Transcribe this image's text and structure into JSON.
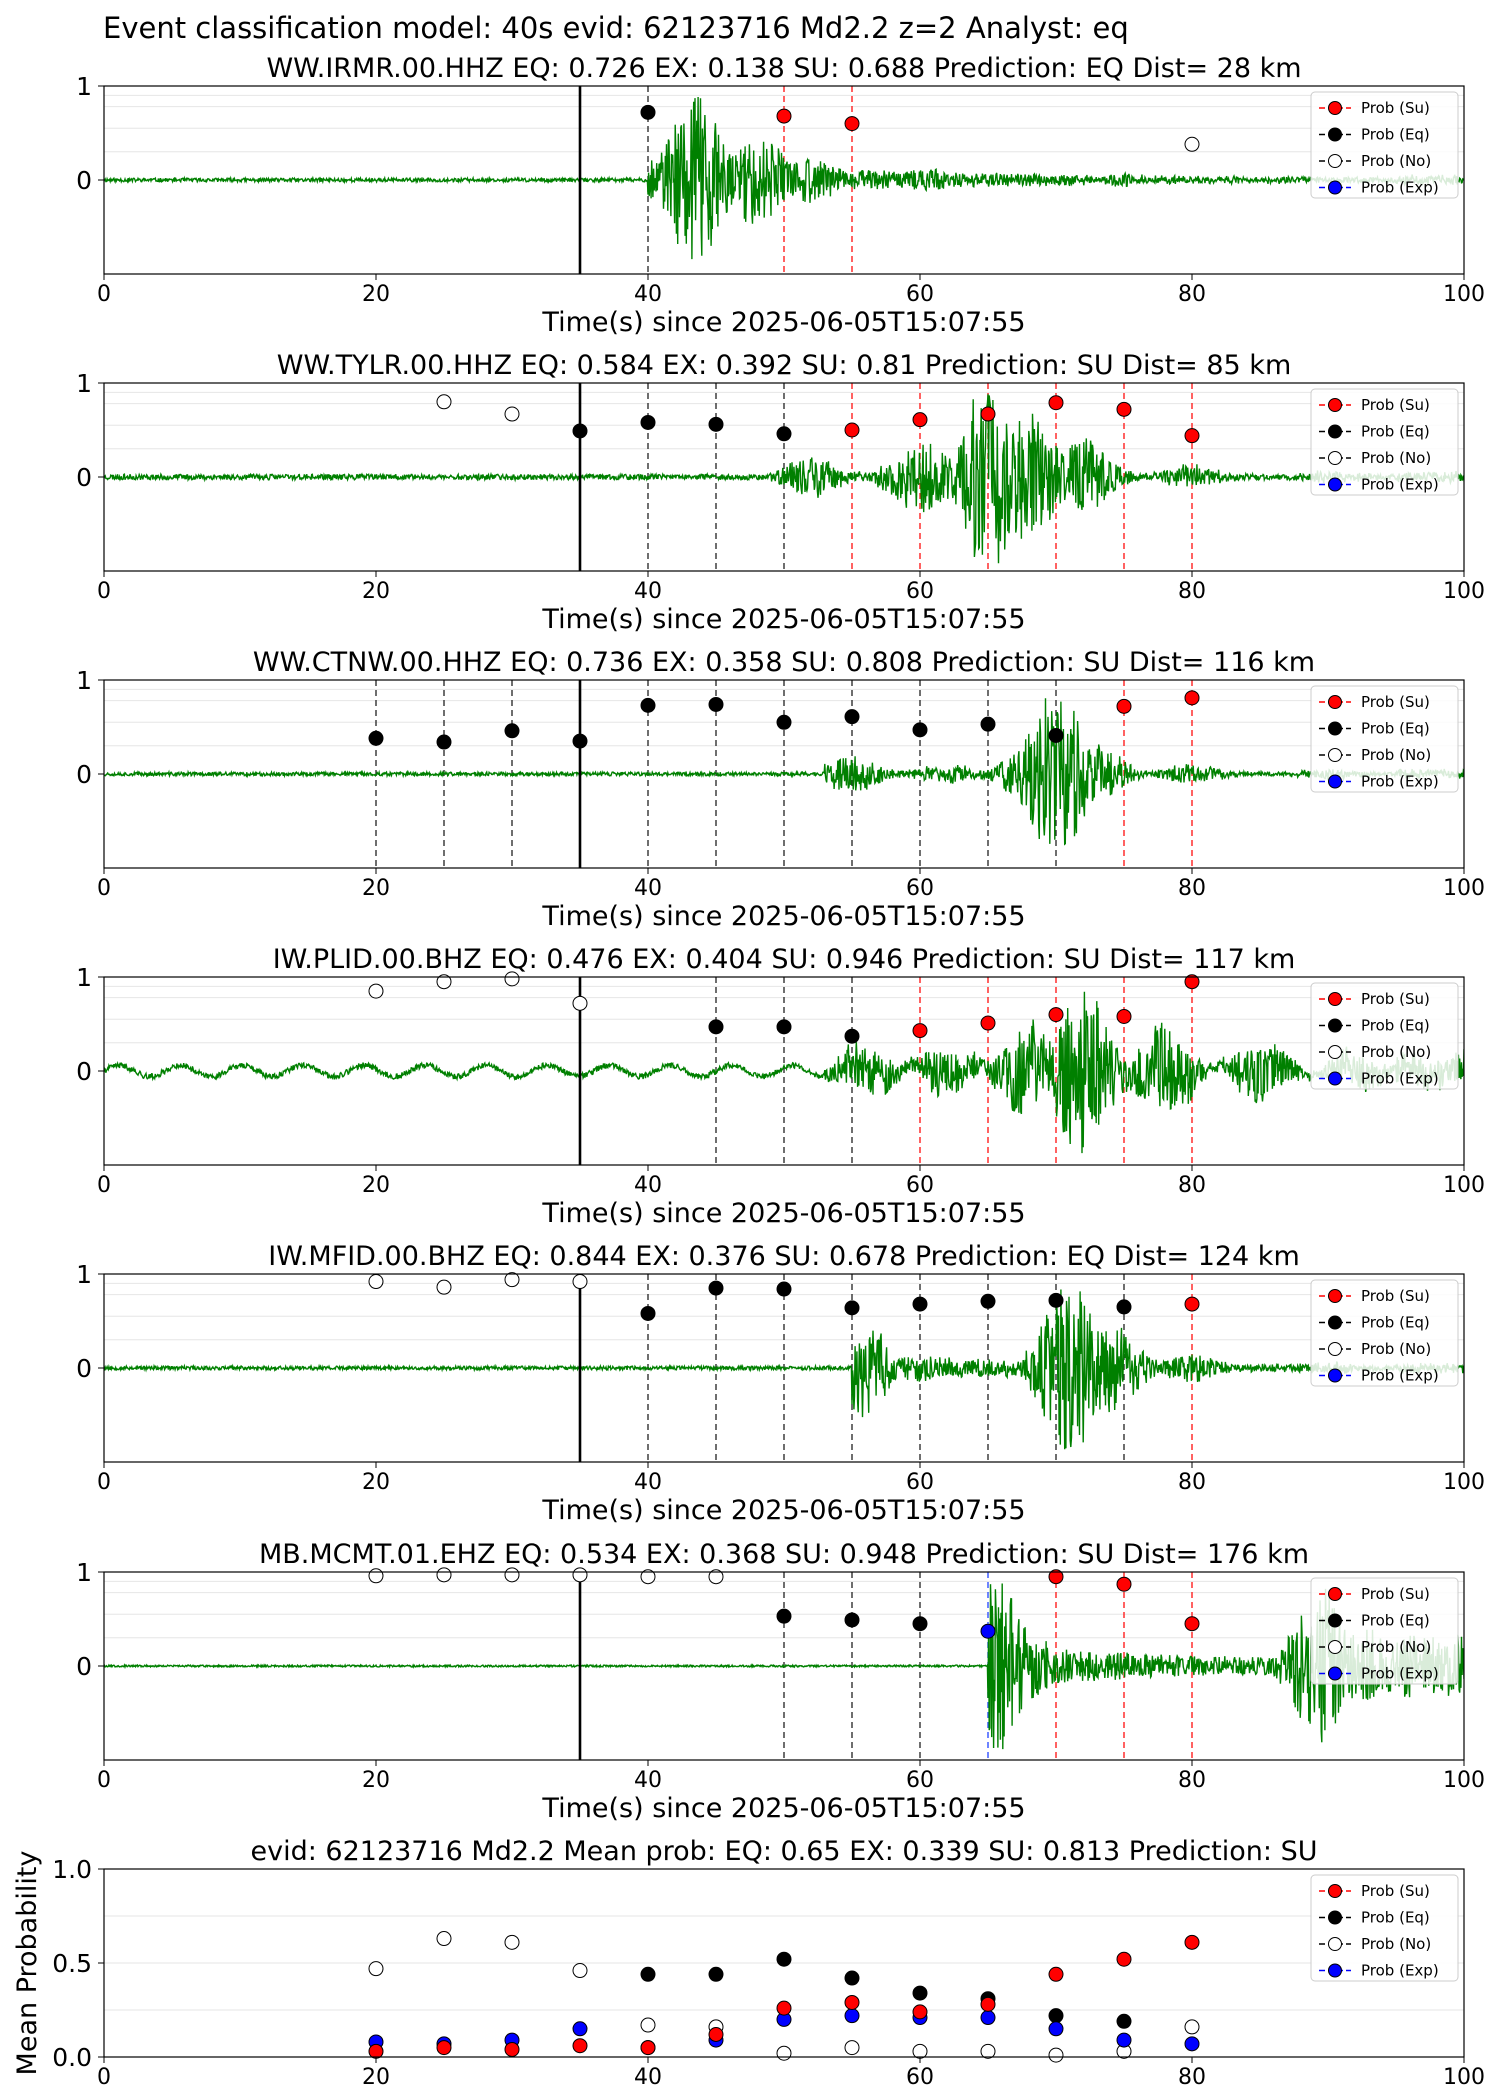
{
  "suptitle": "Event classification model: 40s evid: 62123716 Md2.2 z=2 Analyst: eq",
  "legend": {
    "su": "Prob (Su)",
    "eq": "Prob (Eq)",
    "no": "Prob (No)",
    "exp": "Prob (Exp)"
  },
  "colors": {
    "su": "#ff0000",
    "eq": "#000000",
    "no": "#ffffff",
    "exp": "#0000ff",
    "trace": "#008000"
  },
  "chart_data": [
    {
      "type": "scatter",
      "title": "WW.IRMR.00.HHZ   EQ: 0.726  EX: 0.138  SU: 0.688   Prediction: EQ    Dist= 28 km",
      "xlabel": "Time(s) since 2025-06-05T15:07:55",
      "xlim": [
        0,
        100
      ],
      "ylim": [
        -1,
        1
      ],
      "xticks": [
        "0",
        "20",
        "40",
        "60",
        "80",
        "100"
      ],
      "yticks": [
        "1",
        "0"
      ],
      "event_line": 35,
      "trace": {
        "onset": 40,
        "peaks": [
          [
            43.5,
            0.9
          ],
          [
            48,
            0.5
          ],
          [
            52,
            0.25
          ],
          [
            60,
            0.12
          ],
          [
            75,
            0.06
          ]
        ],
        "tail_level": 0.04,
        "tail_start": 95,
        "noise_level": 0.02,
        "wave_period": 0,
        "seed": 11
      },
      "points": [
        {
          "x": 40,
          "y": 0.72,
          "cls": "eq",
          "vline": true
        },
        {
          "x": 50,
          "y": 0.68,
          "cls": "su",
          "vline": true
        },
        {
          "x": 55,
          "y": 0.6,
          "cls": "su",
          "vline": true
        },
        {
          "x": 80,
          "y": 0.38,
          "cls": "no",
          "vline": false
        }
      ]
    },
    {
      "type": "scatter",
      "title": "WW.TYLR.00.HHZ   EQ: 0.584  EX: 0.392  SU: 0.81   Prediction: SU    Dist= 85 km",
      "xlabel": "Time(s) since 2025-06-05T15:07:55",
      "xlim": [
        0,
        100
      ],
      "ylim": [
        -1,
        1
      ],
      "xticks": [
        "0",
        "20",
        "40",
        "60",
        "80",
        "100"
      ],
      "yticks": [
        "1",
        "0"
      ],
      "event_line": 35,
      "trace": {
        "onset": 49,
        "peaks": [
          [
            52,
            0.22
          ],
          [
            60,
            0.4
          ],
          [
            65,
            1.0
          ],
          [
            68,
            0.7
          ],
          [
            72,
            0.4
          ],
          [
            80,
            0.12
          ],
          [
            90,
            0.06
          ]
        ],
        "tail_level": 0.04,
        "tail_start": 95,
        "noise_level": 0.03,
        "wave_period": 0,
        "seed": 23
      },
      "points": [
        {
          "x": 25,
          "y": 0.8,
          "cls": "no",
          "vline": false
        },
        {
          "x": 30,
          "y": 0.67,
          "cls": "no",
          "vline": false
        },
        {
          "x": 35,
          "y": 0.49,
          "cls": "eq",
          "vline": false
        },
        {
          "x": 40,
          "y": 0.58,
          "cls": "eq",
          "vline": true
        },
        {
          "x": 45,
          "y": 0.56,
          "cls": "eq",
          "vline": true
        },
        {
          "x": 50,
          "y": 0.46,
          "cls": "eq",
          "vline": true
        },
        {
          "x": 55,
          "y": 0.5,
          "cls": "su",
          "vline": true
        },
        {
          "x": 60,
          "y": 0.61,
          "cls": "su",
          "vline": true
        },
        {
          "x": 65,
          "y": 0.67,
          "cls": "su",
          "vline": true
        },
        {
          "x": 70,
          "y": 0.79,
          "cls": "su",
          "vline": true
        },
        {
          "x": 75,
          "y": 0.72,
          "cls": "su",
          "vline": true
        },
        {
          "x": 80,
          "y": 0.44,
          "cls": "su",
          "vline": true
        }
      ]
    },
    {
      "type": "scatter",
      "title": "WW.CTNW.00.HHZ   EQ: 0.736  EX: 0.358  SU: 0.808   Prediction: SU    Dist= 116 km",
      "xlabel": "Time(s) since 2025-06-05T15:07:55",
      "xlim": [
        0,
        100
      ],
      "ylim": [
        -1,
        1
      ],
      "xticks": [
        "0",
        "20",
        "40",
        "60",
        "80",
        "100"
      ],
      "yticks": [
        "1",
        "0"
      ],
      "event_line": 35,
      "trace": {
        "onset": 53,
        "peaks": [
          [
            55,
            0.2
          ],
          [
            62,
            0.1
          ],
          [
            68,
            0.3
          ],
          [
            70,
            0.9
          ],
          [
            73,
            0.3
          ],
          [
            80,
            0.1
          ],
          [
            90,
            0.05
          ]
        ],
        "tail_level": 0.04,
        "tail_start": 95,
        "noise_level": 0.02,
        "wave_period": 0,
        "seed": 37
      },
      "points": [
        {
          "x": 20,
          "y": 0.38,
          "cls": "eq",
          "vline": true
        },
        {
          "x": 25,
          "y": 0.34,
          "cls": "eq",
          "vline": true
        },
        {
          "x": 30,
          "y": 0.46,
          "cls": "eq",
          "vline": true
        },
        {
          "x": 35,
          "y": 0.35,
          "cls": "eq",
          "vline": false
        },
        {
          "x": 40,
          "y": 0.73,
          "cls": "eq",
          "vline": true
        },
        {
          "x": 45,
          "y": 0.74,
          "cls": "eq",
          "vline": true
        },
        {
          "x": 50,
          "y": 0.55,
          "cls": "eq",
          "vline": true
        },
        {
          "x": 55,
          "y": 0.61,
          "cls": "eq",
          "vline": true
        },
        {
          "x": 60,
          "y": 0.47,
          "cls": "eq",
          "vline": true
        },
        {
          "x": 65,
          "y": 0.53,
          "cls": "eq",
          "vline": true
        },
        {
          "x": 70,
          "y": 0.41,
          "cls": "eq",
          "vline": true
        },
        {
          "x": 75,
          "y": 0.72,
          "cls": "su",
          "vline": true
        },
        {
          "x": 80,
          "y": 0.81,
          "cls": "su",
          "vline": true
        }
      ]
    },
    {
      "type": "scatter",
      "title": "IW.PLID.00.BHZ   EQ: 0.476  EX: 0.404  SU: 0.946   Prediction: SU    Dist= 117 km",
      "xlabel": "Time(s) since 2025-06-05T15:07:55",
      "xlim": [
        0,
        100
      ],
      "ylim": [
        -1,
        1
      ],
      "xticks": [
        "0",
        "20",
        "40",
        "60",
        "80",
        "100"
      ],
      "yticks": [
        "1",
        "0"
      ],
      "event_line": 35,
      "trace": {
        "onset": 53,
        "peaks": [
          [
            56,
            0.28
          ],
          [
            62,
            0.25
          ],
          [
            68,
            0.5
          ],
          [
            72,
            0.9
          ],
          [
            78,
            0.45
          ],
          [
            85,
            0.3
          ],
          [
            92,
            0.2
          ]
        ],
        "tail_level": 0.15,
        "tail_start": 95,
        "noise_level": 0.03,
        "wave_period": 4.5,
        "seed": 41
      },
      "points": [
        {
          "x": 20,
          "y": 0.85,
          "cls": "no",
          "vline": false
        },
        {
          "x": 25,
          "y": 0.95,
          "cls": "no",
          "vline": false
        },
        {
          "x": 30,
          "y": 0.98,
          "cls": "no",
          "vline": false
        },
        {
          "x": 35,
          "y": 0.72,
          "cls": "no",
          "vline": false
        },
        {
          "x": 45,
          "y": 0.47,
          "cls": "eq",
          "vline": true
        },
        {
          "x": 50,
          "y": 0.47,
          "cls": "eq",
          "vline": true
        },
        {
          "x": 55,
          "y": 0.37,
          "cls": "eq",
          "vline": true
        },
        {
          "x": 60,
          "y": 0.43,
          "cls": "su",
          "vline": true
        },
        {
          "x": 65,
          "y": 0.51,
          "cls": "su",
          "vline": true
        },
        {
          "x": 70,
          "y": 0.6,
          "cls": "su",
          "vline": true
        },
        {
          "x": 75,
          "y": 0.58,
          "cls": "su",
          "vline": true
        },
        {
          "x": 80,
          "y": 0.95,
          "cls": "su",
          "vline": true
        }
      ]
    },
    {
      "type": "scatter",
      "title": "IW.MFID.00.BHZ   EQ: 0.844  EX: 0.376  SU: 0.678   Prediction: EQ    Dist= 124 km",
      "xlabel": "Time(s) since 2025-06-05T15:07:55",
      "xlim": [
        0,
        100
      ],
      "ylim": [
        -1,
        1
      ],
      "xticks": [
        "0",
        "20",
        "40",
        "60",
        "80",
        "100"
      ],
      "yticks": [
        "1",
        "0"
      ],
      "event_line": 35,
      "trace": {
        "onset": 55,
        "peaks": [
          [
            55.5,
            0.55
          ],
          [
            60,
            0.15
          ],
          [
            66,
            0.1
          ],
          [
            71,
            0.95
          ],
          [
            74,
            0.5
          ],
          [
            80,
            0.15
          ],
          [
            90,
            0.06
          ]
        ],
        "tail_level": 0.04,
        "tail_start": 95,
        "noise_level": 0.02,
        "wave_period": 0,
        "seed": 53
      },
      "points": [
        {
          "x": 20,
          "y": 0.92,
          "cls": "no",
          "vline": false
        },
        {
          "x": 25,
          "y": 0.86,
          "cls": "no",
          "vline": false
        },
        {
          "x": 30,
          "y": 0.94,
          "cls": "no",
          "vline": false
        },
        {
          "x": 35,
          "y": 0.92,
          "cls": "no",
          "vline": false
        },
        {
          "x": 40,
          "y": 0.58,
          "cls": "eq",
          "vline": true
        },
        {
          "x": 45,
          "y": 0.85,
          "cls": "eq",
          "vline": true
        },
        {
          "x": 50,
          "y": 0.84,
          "cls": "eq",
          "vline": true
        },
        {
          "x": 55,
          "y": 0.64,
          "cls": "eq",
          "vline": true
        },
        {
          "x": 60,
          "y": 0.68,
          "cls": "eq",
          "vline": true
        },
        {
          "x": 65,
          "y": 0.71,
          "cls": "eq",
          "vline": true
        },
        {
          "x": 70,
          "y": 0.72,
          "cls": "eq",
          "vline": true
        },
        {
          "x": 75,
          "y": 0.65,
          "cls": "eq",
          "vline": true
        },
        {
          "x": 80,
          "y": 0.68,
          "cls": "su",
          "vline": true
        }
      ]
    },
    {
      "type": "scatter",
      "title": "MB.MCMT.01.EHZ   EQ: 0.534  EX: 0.368  SU: 0.948   Prediction: SU    Dist= 176 km",
      "xlabel": "Time(s) since 2025-06-05T15:07:55",
      "xlim": [
        0,
        100
      ],
      "ylim": [
        -1,
        1
      ],
      "xticks": [
        "0",
        "20",
        "40",
        "60",
        "80",
        "100"
      ],
      "yticks": [
        "1",
        "0"
      ],
      "event_line": 35,
      "trace": {
        "onset": 65,
        "peaks": [
          [
            65.5,
            0.95
          ],
          [
            68,
            0.35
          ],
          [
            75,
            0.12
          ],
          [
            85,
            0.1
          ],
          [
            89.5,
            0.85
          ],
          [
            93,
            0.4
          ]
        ],
        "tail_level": 0.3,
        "tail_start": 95,
        "noise_level": 0.01,
        "wave_period": 0,
        "seed": 67
      },
      "points": [
        {
          "x": 20,
          "y": 0.96,
          "cls": "no",
          "vline": false
        },
        {
          "x": 25,
          "y": 0.97,
          "cls": "no",
          "vline": false
        },
        {
          "x": 30,
          "y": 0.97,
          "cls": "no",
          "vline": false
        },
        {
          "x": 35,
          "y": 0.97,
          "cls": "no",
          "vline": false
        },
        {
          "x": 40,
          "y": 0.95,
          "cls": "no",
          "vline": false
        },
        {
          "x": 45,
          "y": 0.95,
          "cls": "no",
          "vline": false
        },
        {
          "x": 50,
          "y": 0.53,
          "cls": "eq",
          "vline": true
        },
        {
          "x": 55,
          "y": 0.49,
          "cls": "eq",
          "vline": true
        },
        {
          "x": 60,
          "y": 0.45,
          "cls": "eq",
          "vline": true
        },
        {
          "x": 65,
          "y": 0.37,
          "cls": "exp",
          "vline": true
        },
        {
          "x": 70,
          "y": 0.95,
          "cls": "su",
          "vline": true
        },
        {
          "x": 75,
          "y": 0.87,
          "cls": "su",
          "vline": true
        },
        {
          "x": 80,
          "y": 0.45,
          "cls": "su",
          "vline": true
        }
      ]
    },
    {
      "type": "scatter",
      "title": "evid: 62123716  Md2.2   Mean prob:   EQ: 0.65  EX: 0.339  SU: 0.813   Prediction: SU",
      "ylabel": "Mean Probability",
      "xlim": [
        0,
        100
      ],
      "ylim": [
        0,
        1
      ],
      "xticks": [
        "0",
        "20",
        "40",
        "60",
        "80",
        "100"
      ],
      "yticks": [
        "0.0",
        "0.5",
        "1.0"
      ],
      "series": [
        {
          "name": "Prob (No)",
          "cls": "no",
          "x": [
            20,
            25,
            30,
            35,
            40,
            45,
            50,
            55,
            60,
            65,
            70,
            75,
            80
          ],
          "y": [
            0.47,
            0.63,
            0.61,
            0.46,
            0.17,
            0.16,
            0.02,
            0.05,
            0.03,
            0.03,
            0.01,
            0.03,
            0.16
          ]
        },
        {
          "name": "Prob (Eq)",
          "cls": "eq",
          "x": [
            40,
            45,
            50,
            55,
            60,
            65,
            70,
            75
          ],
          "y": [
            0.44,
            0.44,
            0.52,
            0.42,
            0.34,
            0.31,
            0.22,
            0.19
          ]
        },
        {
          "name": "Prob (Exp)",
          "cls": "exp",
          "x": [
            20,
            25,
            30,
            35,
            40,
            45,
            50,
            55,
            60,
            65,
            70,
            75,
            80
          ],
          "y": [
            0.08,
            0.07,
            0.09,
            0.15,
            0.05,
            0.09,
            0.2,
            0.22,
            0.21,
            0.21,
            0.15,
            0.09,
            0.07
          ]
        },
        {
          "name": "Prob (Su)",
          "cls": "su",
          "x": [
            20,
            25,
            30,
            35,
            40,
            45,
            50,
            55,
            60,
            65,
            70,
            75,
            80
          ],
          "y": [
            0.03,
            0.05,
            0.04,
            0.06,
            0.05,
            0.12,
            0.26,
            0.29,
            0.24,
            0.28,
            0.44,
            0.52,
            0.61
          ]
        }
      ]
    }
  ]
}
